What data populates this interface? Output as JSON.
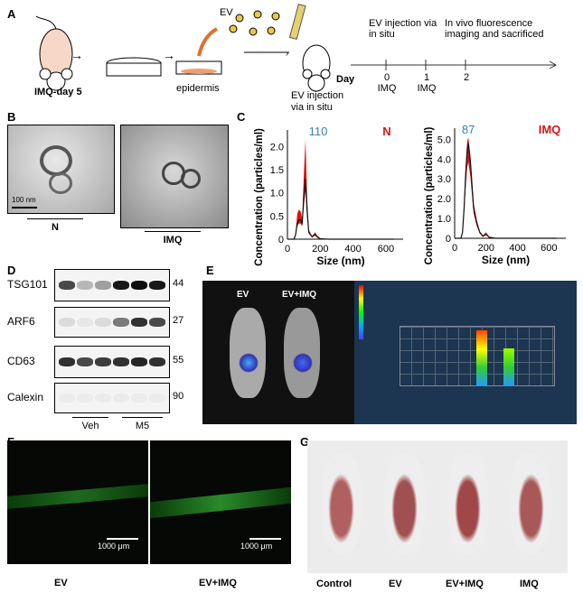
{
  "panels": {
    "a": "A",
    "b": "B",
    "c": "C",
    "d": "D",
    "e": "E",
    "f": "F",
    "g": "G"
  },
  "panel_a": {
    "mouse_label": "IMQ-day 5",
    "dish_label": "epidermis",
    "ev": "EV",
    "injection": "EV injection via in situ",
    "day": "Day",
    "timeline": [
      {
        "day": "0",
        "sub": "IMQ"
      },
      {
        "day": "1",
        "sub": "IMQ"
      },
      {
        "day": "2",
        "sub": ""
      }
    ],
    "event1": "EV injection via in situ",
    "event2": "In vivo fluorescence imaging and sacrificed"
  },
  "panel_b": {
    "scale": "100 nm",
    "labels": [
      "N",
      "IMQ"
    ]
  },
  "chart_data": [
    {
      "type": "line",
      "title": "N",
      "peak_label": "110",
      "xlabel": "Size (nm)",
      "ylabel": "Concentration (particles/ml)",
      "xlim": [
        0,
        650
      ],
      "ylim": [
        0,
        2.2
      ],
      "xticks": [
        "0",
        "200",
        "400",
        "600"
      ],
      "yticks": [
        "0",
        "0.5",
        "1.0",
        "1.5",
        "2.0"
      ],
      "x": [
        0,
        40,
        50,
        60,
        70,
        80,
        90,
        100,
        110,
        120,
        130,
        150,
        170,
        180,
        200,
        250,
        650
      ],
      "y": [
        0,
        0,
        0.1,
        0.35,
        0.42,
        0.42,
        0.35,
        0.9,
        1.3,
        0.6,
        0.15,
        0.05,
        0.1,
        0.05,
        0.01,
        0,
        0
      ],
      "band_upper": [
        0,
        0,
        0.15,
        0.55,
        0.64,
        0.6,
        0.45,
        1.4,
        2.15,
        0.9,
        0.2,
        0.07,
        0.15,
        0.08,
        0.02,
        0,
        0
      ]
    },
    {
      "type": "line",
      "title": "IMQ",
      "peak_label": "87",
      "xlabel": "Size (nm)",
      "ylabel": "Concentration (particles/ml)",
      "xlim": [
        0,
        650
      ],
      "ylim": [
        0,
        5.2
      ],
      "xticks": [
        "0",
        "200",
        "400",
        "600"
      ],
      "yticks": [
        "0",
        "1.0",
        "2.0",
        "3.0",
        "4.0",
        "5.0"
      ],
      "x": [
        0,
        40,
        50,
        60,
        70,
        80,
        87,
        100,
        120,
        140,
        160,
        180,
        200,
        220,
        260,
        650
      ],
      "y": [
        0,
        0,
        0.3,
        1.5,
        3.2,
        4.5,
        4.8,
        3.9,
        1.6,
        0.8,
        0.3,
        0.1,
        0.2,
        0.05,
        0,
        0
      ],
      "band_upper": [
        0,
        0,
        0.4,
        1.8,
        3.6,
        4.9,
        5.1,
        4.2,
        1.8,
        0.95,
        0.35,
        0.15,
        0.3,
        0.08,
        0,
        0
      ]
    }
  ],
  "panel_d": {
    "rows": [
      {
        "name": "TSG101",
        "kda": "44"
      },
      {
        "name": "ARF6",
        "kda": "27"
      },
      {
        "name": "CD63",
        "kda": "55"
      },
      {
        "name": "Calexin",
        "kda": "90"
      }
    ],
    "groups": [
      "Veh",
      "M5"
    ]
  },
  "panel_e": {
    "labels": [
      "EV",
      "EV+IMQ"
    ]
  },
  "panel_f": {
    "scale": "1000 μm",
    "labels": [
      "EV",
      "EV+IMQ"
    ]
  },
  "panel_g": {
    "labels": [
      "Control",
      "EV",
      "EV+IMQ",
      "IMQ"
    ]
  },
  "colors": {
    "band": "#e01010",
    "peak_label": "#3a7fb0",
    "title": "#d01818",
    "ev_panel_bg": "#1c3550"
  }
}
